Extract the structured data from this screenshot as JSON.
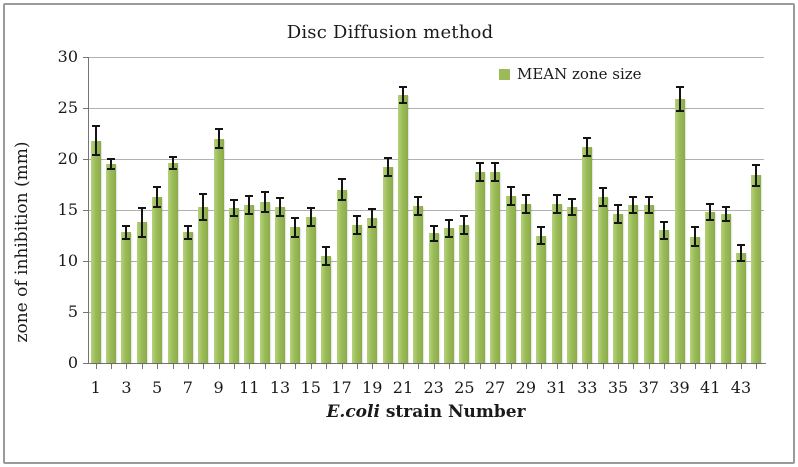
{
  "title": "Disc Diffusion method",
  "legend": {
    "label": "MEAN zone size",
    "swatch_color": "#9bbb59"
  },
  "y_axis": {
    "title": "zone of inhibition (mm)",
    "ticks": [
      0,
      5,
      10,
      15,
      20,
      25,
      30
    ]
  },
  "x_axis": {
    "title_em": "E.coli",
    "title_rest": " strain Number",
    "visible_labels": [
      "1",
      "3",
      "5",
      "7",
      "9",
      "11",
      "13",
      "15",
      "17",
      "19",
      "21",
      "23",
      "25",
      "27",
      "29",
      "31",
      "33",
      "35",
      "37",
      "39",
      "41",
      "43"
    ]
  },
  "chart_data": {
    "type": "bar",
    "title": "Disc Diffusion method",
    "xlabel": "E.coli strain Number",
    "ylabel": "zone of inhibition (mm)",
    "ylim": [
      0,
      30
    ],
    "grid": true,
    "legend_position": "top-right",
    "categories": [
      1,
      2,
      3,
      4,
      5,
      6,
      7,
      8,
      9,
      10,
      11,
      12,
      13,
      14,
      15,
      16,
      17,
      18,
      19,
      20,
      21,
      22,
      23,
      24,
      25,
      26,
      27,
      28,
      29,
      30,
      31,
      32,
      33,
      34,
      35,
      36,
      37,
      38,
      39,
      40,
      41,
      42,
      43,
      44
    ],
    "series": [
      {
        "name": "MEAN zone size",
        "color": "#9bbb59",
        "values": [
          21.8,
          19.5,
          12.8,
          13.8,
          16.3,
          19.6,
          12.8,
          15.3,
          22.0,
          15.2,
          15.5,
          15.8,
          15.3,
          13.3,
          14.3,
          10.5,
          17.0,
          13.5,
          14.2,
          19.2,
          26.3,
          15.4,
          12.7,
          13.2,
          13.5,
          18.7,
          18.7,
          16.4,
          15.6,
          12.5,
          15.6,
          15.3,
          21.2,
          16.3,
          14.6,
          15.5,
          15.5,
          13.0,
          25.9,
          12.4,
          14.8,
          14.6,
          10.8,
          18.4
        ],
        "error_bars": [
          1.4,
          0.5,
          0.6,
          1.4,
          1.0,
          0.6,
          0.6,
          1.3,
          0.9,
          0.8,
          0.9,
          1.0,
          0.9,
          0.9,
          0.9,
          0.9,
          1.0,
          0.9,
          0.9,
          0.9,
          0.8,
          0.9,
          0.7,
          0.8,
          0.9,
          0.9,
          0.9,
          0.9,
          0.9,
          0.8,
          0.9,
          0.8,
          0.9,
          0.9,
          0.9,
          0.8,
          0.8,
          0.8,
          1.2,
          0.9,
          0.8,
          0.7,
          0.8,
          1.0
        ]
      }
    ]
  },
  "colors": {
    "bar": "#9bbb59",
    "bar_light": "#b5d37c",
    "bar_dark": "#8aac48",
    "gridline": "#b1b1b1",
    "axis": "#757575",
    "error_bar": "#141414",
    "frame": "#9a9a9a",
    "text": "#1a1a1a"
  }
}
